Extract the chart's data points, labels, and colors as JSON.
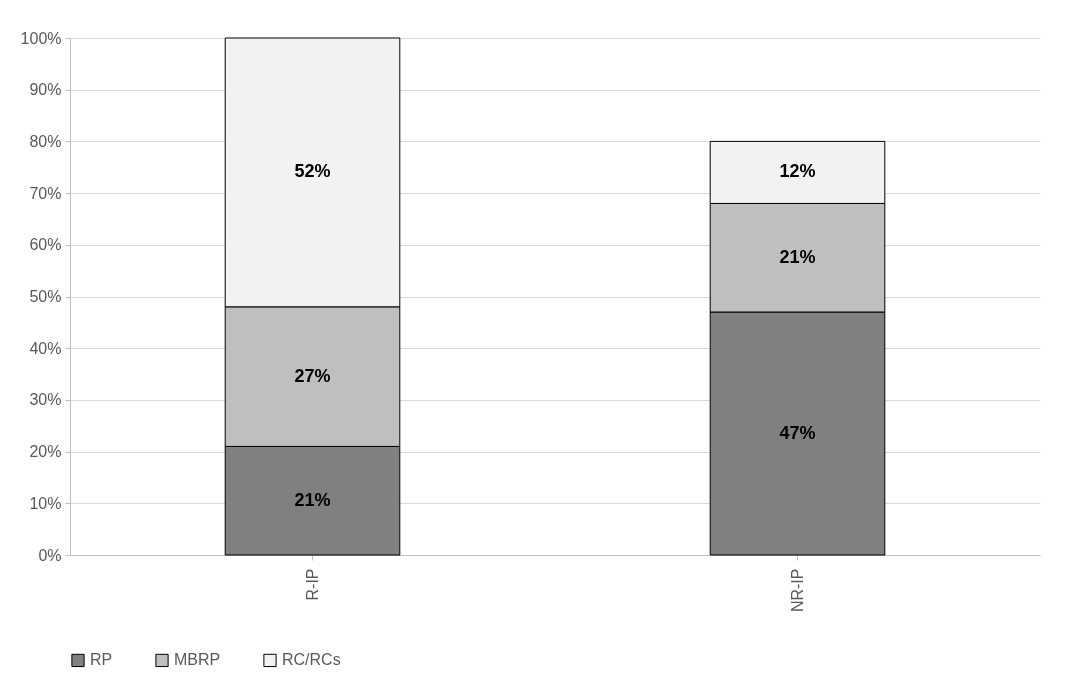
{
  "chart_data": {
    "type": "bar",
    "stacked": true,
    "categories": [
      "R-IP",
      "NR-IP"
    ],
    "series": [
      {
        "name": "RP",
        "color": "#808080",
        "values": [
          21,
          47
        ],
        "value_labels": [
          "21%",
          "47%"
        ]
      },
      {
        "name": "MBRP",
        "color": "#bfbfbf",
        "values": [
          27,
          21
        ],
        "value_labels": [
          "27%",
          "21%"
        ]
      },
      {
        "name": "RC/RCs",
        "color": "#f2f2f2",
        "values": [
          52,
          12
        ],
        "value_labels": [
          "52%",
          "12%"
        ]
      }
    ],
    "ylim": [
      0,
      100
    ],
    "yticks": [
      {
        "value": 0,
        "label": "0%"
      },
      {
        "value": 10,
        "label": "10%"
      },
      {
        "value": 20,
        "label": "20%"
      },
      {
        "value": 30,
        "label": "30%"
      },
      {
        "value": 40,
        "label": "40%"
      },
      {
        "value": 50,
        "label": "50%"
      },
      {
        "value": 60,
        "label": "60%"
      },
      {
        "value": 70,
        "label": "70%"
      },
      {
        "value": 80,
        "label": "80%"
      },
      {
        "value": 90,
        "label": "90%"
      },
      {
        "value": 100,
        "label": "100%"
      }
    ],
    "grid": "y",
    "legend": "bottom"
  }
}
